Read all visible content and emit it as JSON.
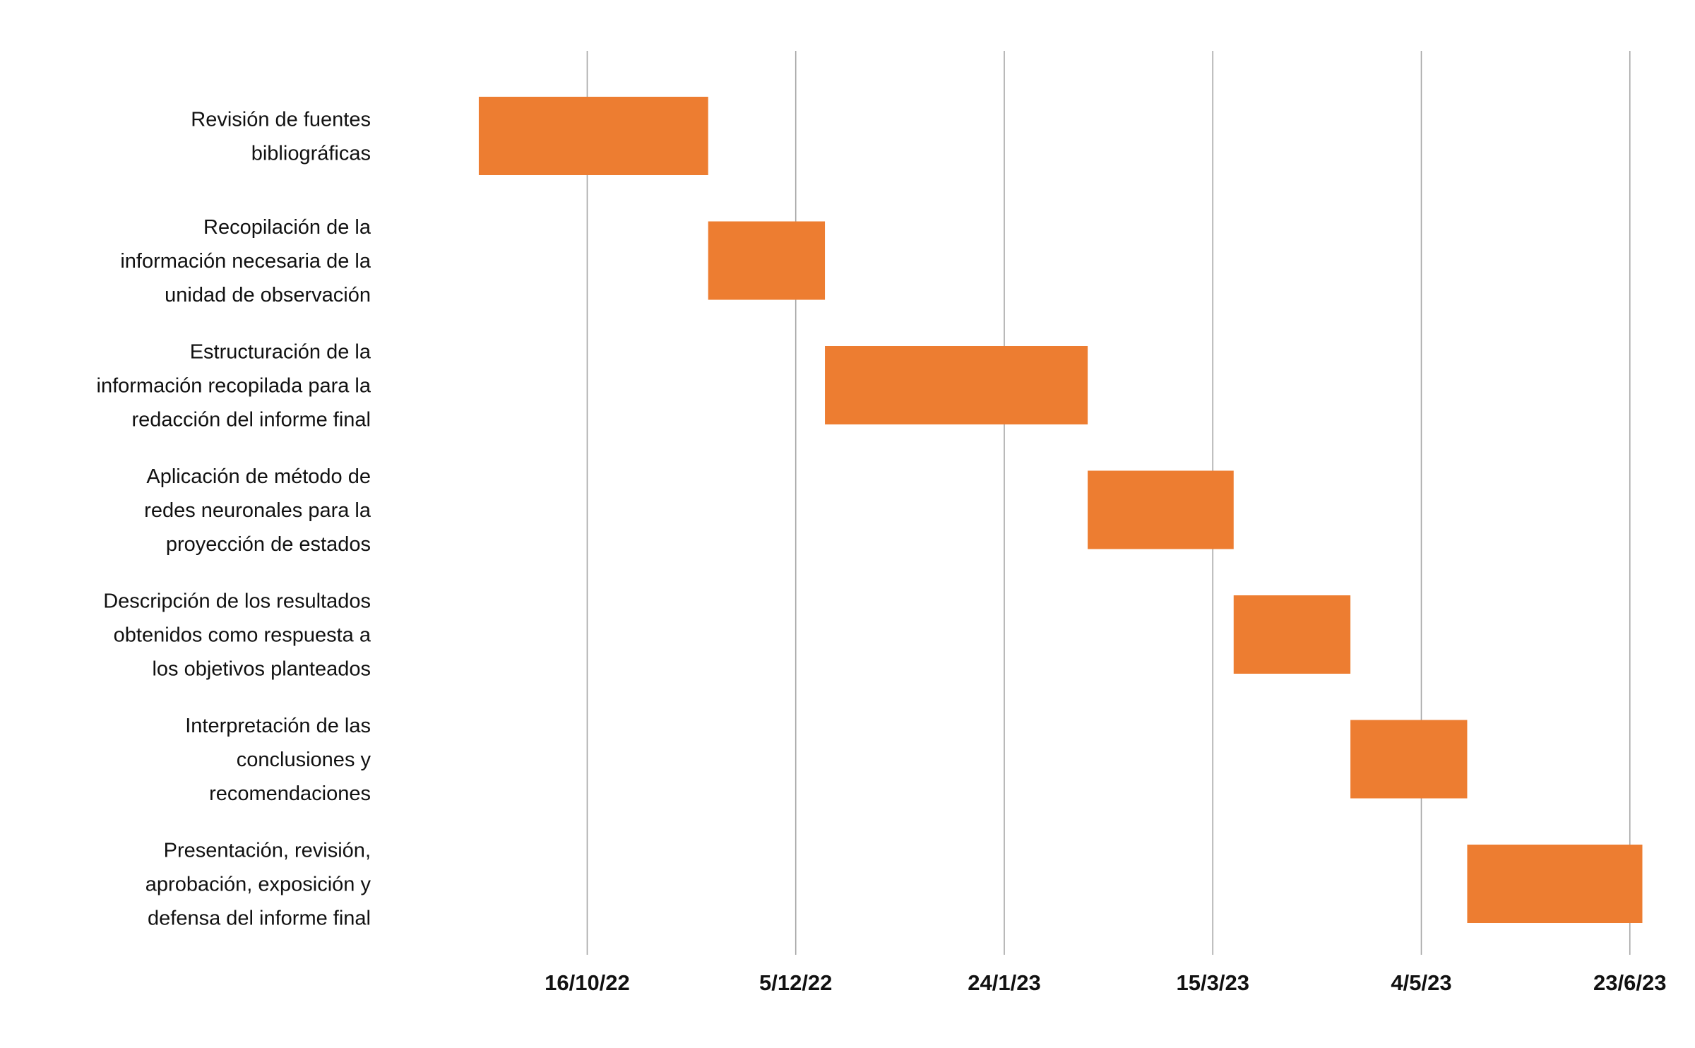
{
  "chart_data": {
    "type": "bar",
    "orientation": "horizontal-gantt",
    "title": "",
    "xlabel": "",
    "ylabel": "",
    "grid": true,
    "x_axis": {
      "type": "date",
      "range": [
        "2022-08-29",
        "2023-07-01"
      ],
      "ticks": [
        {
          "date": "2022-10-16",
          "label": "16/10/22"
        },
        {
          "date": "2022-12-05",
          "label": "5/12/22"
        },
        {
          "date": "2023-01-24",
          "label": "24/1/23"
        },
        {
          "date": "2023-03-15",
          "label": "15/3/23"
        },
        {
          "date": "2023-05-04",
          "label": "4/5/23"
        },
        {
          "date": "2023-06-23",
          "label": "23/6/23"
        }
      ]
    },
    "bar_color": "#ED7D31",
    "tasks": [
      {
        "label_lines": [
          "Revisión de fuentes",
          "bibliográficas"
        ],
        "start": "2022-09-20",
        "end": "2022-11-14"
      },
      {
        "label_lines": [
          "Recopilación de la",
          "información necesaria de la",
          "unidad de observación"
        ],
        "start": "2022-11-14",
        "end": "2022-12-12"
      },
      {
        "label_lines": [
          "Estructuración de la",
          "información recopilada para la",
          "redacción del informe final"
        ],
        "start": "2022-12-12",
        "end": "2023-02-13"
      },
      {
        "label_lines": [
          "Aplicación de método de",
          "redes neuronales para la",
          "proyección de estados"
        ],
        "start": "2023-02-13",
        "end": "2023-03-20"
      },
      {
        "label_lines": [
          "Descripción de los resultados",
          "obtenidos como respuesta a",
          "los objetivos planteados"
        ],
        "start": "2023-03-20",
        "end": "2023-04-17"
      },
      {
        "label_lines": [
          "Interpretación de las",
          "conclusiones y",
          "recomendaciones"
        ],
        "start": "2023-04-17",
        "end": "2023-05-15"
      },
      {
        "label_lines": [
          "Presentación, revisión,",
          "aprobación, exposición y",
          "defensa del informe final"
        ],
        "start": "2023-05-15",
        "end": "2023-06-26"
      }
    ]
  }
}
